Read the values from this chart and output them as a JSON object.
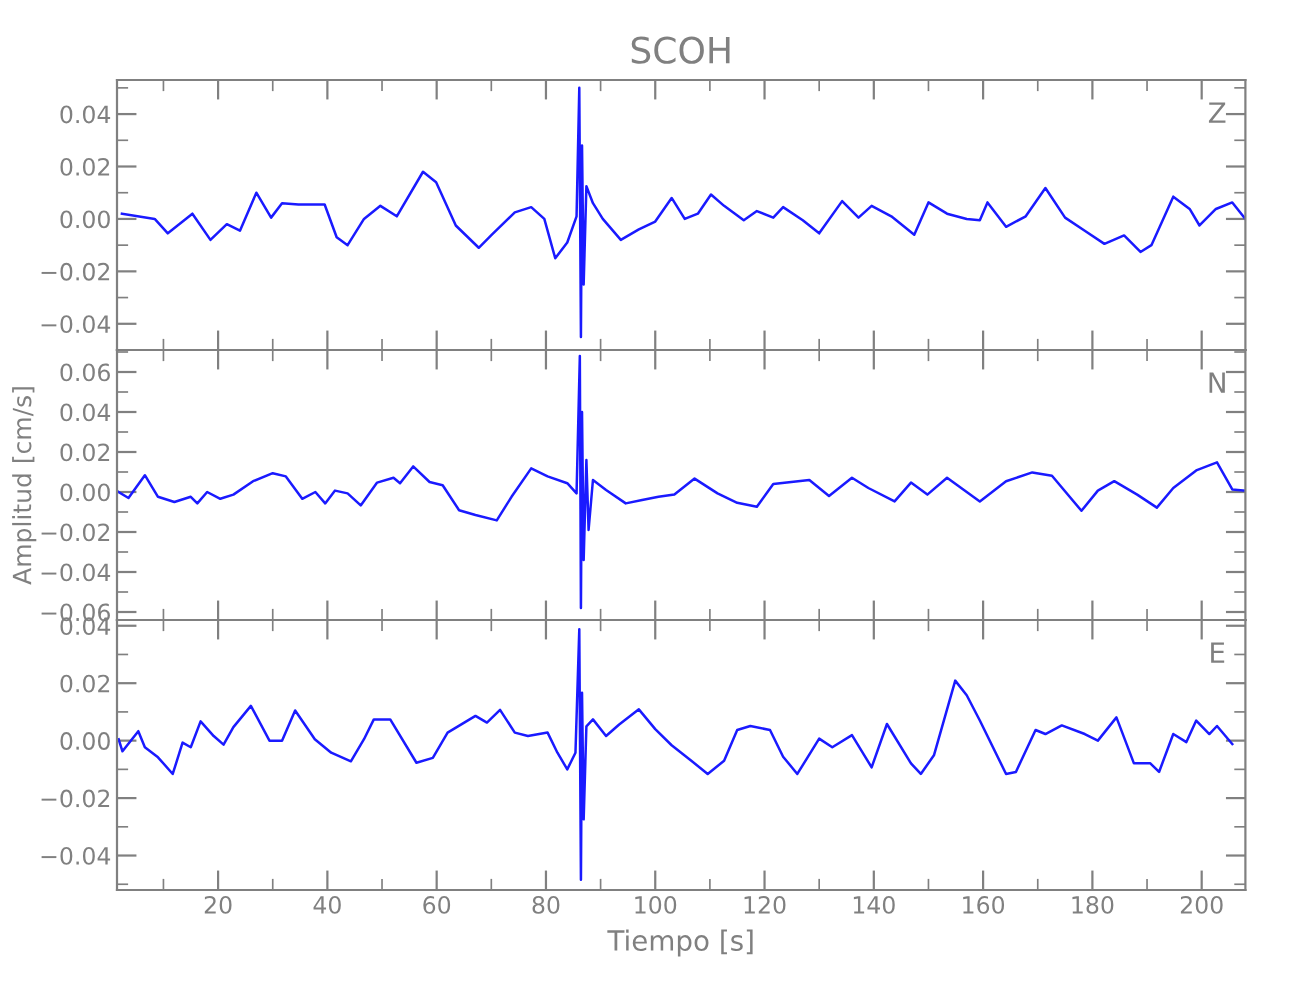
{
  "chart_data": [
    {
      "type": "line",
      "title": "SCOH",
      "annotations": [
        "Z"
      ],
      "tick_labels": "y",
      "grid": false,
      "legend": false,
      "xlim": [
        1.5,
        208
      ],
      "xticks": [
        20,
        40,
        60,
        80,
        100,
        120,
        140,
        160,
        180,
        200
      ],
      "ylim": [
        -0.05,
        0.053
      ],
      "yticks": [
        {
          "value": -0.04,
          "label": "−0.04"
        },
        {
          "value": -0.02,
          "label": "−0.02"
        },
        {
          "value": 0.0,
          "label": "0.00"
        },
        {
          "value": 0.02,
          "label": "0.02"
        },
        {
          "value": 0.04,
          "label": "0.04"
        }
      ],
      "series": [
        {
          "color": "#1a1aff",
          "x": [
            2.4,
            8.4,
            10.8,
            15.3,
            18.6,
            21.6,
            24,
            27,
            29.7,
            31.7,
            34.7,
            39.5,
            41.7,
            43.7,
            46.7,
            49.7,
            52.7,
            57.5,
            59.9,
            63.5,
            67.7,
            70.1,
            74.3,
            77.3,
            79.7,
            81.7,
            83.9,
            85.6,
            86.1,
            86.4,
            86.6,
            86.9,
            87.4,
            88.6,
            90.4,
            93.7,
            97,
            100,
            103,
            105.4,
            107.8,
            110.2,
            112.6,
            116.2,
            118.6,
            121.6,
            123.4,
            127,
            130,
            134.2,
            137.2,
            139.6,
            143.2,
            147.4,
            150,
            153.4,
            157,
            159.4,
            160.8,
            164.2,
            167.8,
            171.4,
            175,
            178.6,
            182.2,
            185.8,
            188.8,
            190.8,
            194.8,
            197.8,
            199.6,
            202.6,
            205.6,
            208
          ],
          "values": [
            0.002,
            0.0,
            -0.0055,
            0.002,
            -0.008,
            -0.002,
            -0.0045,
            0.01,
            0.0005,
            0.006,
            0.0055,
            0.0055,
            -0.007,
            -0.01,
            0.0,
            0.005,
            0.001,
            0.018,
            0.014,
            -0.0025,
            -0.011,
            -0.006,
            0.0025,
            0.0045,
            0.0,
            -0.015,
            -0.009,
            0.001,
            0.05,
            -0.045,
            0.028,
            -0.025,
            0.0125,
            0.006,
            0.0,
            -0.008,
            -0.004,
            -0.001,
            0.008,
            0.0,
            0.002,
            0.0093,
            0.005,
            -0.0005,
            0.003,
            0.0005,
            0.0045,
            -0.0005,
            -0.0055,
            0.0068,
            0.0005,
            0.005,
            0.001,
            -0.006,
            0.0063,
            0.002,
            0.0,
            -0.0005,
            0.0063,
            -0.003,
            0.001,
            0.0118,
            0.0005,
            -0.0045,
            -0.0095,
            -0.0063,
            -0.0126,
            -0.01,
            0.0085,
            0.0038,
            -0.0025,
            0.0038,
            0.0063,
            0.0
          ]
        }
      ]
    },
    {
      "type": "line",
      "ylabel": "Amplitud [cm/s]",
      "annotations": [
        "N"
      ],
      "tick_labels": "y",
      "grid": false,
      "legend": false,
      "xlim": [
        1.5,
        208
      ],
      "xticks": [
        20,
        40,
        60,
        80,
        100,
        120,
        140,
        160,
        180,
        200
      ],
      "ylim": [
        -0.064,
        0.071
      ],
      "yticks": [
        {
          "value": -0.06,
          "label": "−0.06"
        },
        {
          "value": -0.04,
          "label": "−0.04"
        },
        {
          "value": -0.02,
          "label": "−0.02"
        },
        {
          "value": 0.0,
          "label": "0.00"
        },
        {
          "value": 0.02,
          "label": "0.02"
        },
        {
          "value": 0.04,
          "label": "0.04"
        },
        {
          "value": 0.06,
          "label": "0.06"
        }
      ],
      "series": [
        {
          "color": "#1a1aff",
          "x": [
            1.8,
            3.6,
            6.6,
            9,
            12,
            15,
            16.2,
            18,
            20.4,
            22.8,
            26.4,
            30,
            32.4,
            35.4,
            37.8,
            39.6,
            41.4,
            43.7,
            46.1,
            49.1,
            52.1,
            53.3,
            55.7,
            58.7,
            61.1,
            64.1,
            67.1,
            71,
            73.7,
            77.3,
            80.3,
            83.9,
            85.6,
            86.2,
            86.4,
            86.6,
            86.9,
            87.4,
            87.8,
            88.6,
            91,
            94.6,
            97.6,
            100.6,
            103.5,
            107.2,
            111.4,
            115,
            118.6,
            121.6,
            128.2,
            131.8,
            136,
            139,
            143.8,
            146.8,
            149.8,
            153.4,
            159.4,
            164.2,
            169,
            172.6,
            178,
            181,
            184,
            188.2,
            191.8,
            194.8,
            199,
            202.8,
            205.6,
            208
          ],
          "values": [
            0.0,
            -0.003,
            0.0084,
            -0.0024,
            -0.005,
            -0.0024,
            -0.0057,
            0.0,
            -0.0034,
            -0.0013,
            0.0054,
            0.0094,
            0.0078,
            -0.0034,
            0.0,
            -0.0057,
            0.0007,
            -0.0007,
            -0.0067,
            0.0047,
            0.0071,
            0.0044,
            0.0128,
            0.005,
            0.0034,
            -0.0091,
            -0.0115,
            -0.0142,
            -0.0024,
            0.0118,
            0.0078,
            0.0044,
            -0.0007,
            0.068,
            -0.058,
            0.04,
            -0.034,
            0.016,
            -0.019,
            0.006,
            0.001,
            -0.0057,
            -0.004,
            -0.0024,
            -0.0013,
            0.0067,
            -0.0007,
            -0.0054,
            -0.0074,
            0.004,
            0.006,
            -0.002,
            0.0071,
            0.002,
            -0.0047,
            0.0047,
            -0.0013,
            0.0071,
            -0.0047,
            0.0054,
            0.0098,
            0.0081,
            -0.0094,
            0.0007,
            0.0054,
            -0.0013,
            -0.0078,
            0.002,
            0.0108,
            0.0148,
            0.0013,
            0.0007
          ]
        }
      ]
    },
    {
      "type": "line",
      "xlabel": "Tiempo [s]",
      "annotations": [
        "E"
      ],
      "grid": false,
      "legend": false,
      "xlim": [
        1.5,
        208
      ],
      "xticks": [
        20,
        40,
        60,
        80,
        100,
        120,
        140,
        160,
        180,
        200
      ],
      "ylim": [
        -0.052,
        0.042
      ],
      "yticks": [
        {
          "value": -0.04,
          "label": "−0.04"
        },
        {
          "value": -0.02,
          "label": "−0.02"
        },
        {
          "value": 0.0,
          "label": "0.00"
        },
        {
          "value": 0.02,
          "label": "0.02"
        },
        {
          "value": 0.04,
          "label": "0.04"
        }
      ],
      "series": [
        {
          "color": "#1a1aff",
          "x": [
            1.8,
            2.5,
            5.4,
            6.6,
            9,
            11.7,
            13.5,
            15,
            16.8,
            19.2,
            21,
            22.8,
            26,
            29.4,
            31.7,
            34.1,
            37.7,
            40.7,
            44.3,
            46.7,
            48.5,
            51.5,
            56.3,
            59.3,
            62,
            67.1,
            69.2,
            71.6,
            74.3,
            76.7,
            80.3,
            82.1,
            83.9,
            85.4,
            86.1,
            86.4,
            86.6,
            86.9,
            87.4,
            88.6,
            91,
            93.4,
            97,
            100,
            103,
            106.6,
            109.6,
            112.6,
            115,
            117.4,
            121,
            123.4,
            126,
            130,
            132.4,
            136,
            139.6,
            142.4,
            146.8,
            148.6,
            151,
            154.9,
            157,
            159.4,
            164.2,
            166,
            169.6,
            171.4,
            174.4,
            178.6,
            181,
            184.4,
            187.6,
            190.6,
            192.2,
            194.8,
            197.2,
            199,
            201.4,
            202.8,
            205.6
          ],
          "values": [
            0.0005,
            -0.0037,
            0.0033,
            -0.0023,
            -0.0058,
            -0.0116,
            -0.0007,
            -0.0023,
            0.0067,
            0.0016,
            -0.0014,
            0.0047,
            0.0121,
            0.0,
            0.0,
            0.0105,
            0.0005,
            -0.0042,
            -0.0072,
            0.0005,
            0.0074,
            0.0074,
            -0.0077,
            -0.006,
            0.0028,
            0.0086,
            0.0063,
            0.0107,
            0.0028,
            0.0016,
            0.0028,
            -0.0042,
            -0.01,
            -0.0042,
            0.0388,
            -0.0484,
            0.0167,
            -0.0274,
            0.005,
            0.0074,
            0.0016,
            0.0056,
            0.0109,
            0.004,
            -0.0016,
            -0.007,
            -0.0116,
            -0.007,
            0.0037,
            0.0051,
            0.0037,
            -0.0056,
            -0.0116,
            0.0007,
            -0.0023,
            0.0019,
            -0.0093,
            0.0058,
            -0.0079,
            -0.0116,
            -0.0051,
            0.0209,
            0.0158,
            0.007,
            -0.0116,
            -0.0109,
            0.0037,
            0.0023,
            0.0053,
            0.0023,
            0.0,
            0.0081,
            -0.0079,
            -0.0079,
            -0.0109,
            0.0023,
            -0.0005,
            0.007,
            0.0023,
            0.0051,
            -0.0012
          ]
        }
      ]
    }
  ]
}
